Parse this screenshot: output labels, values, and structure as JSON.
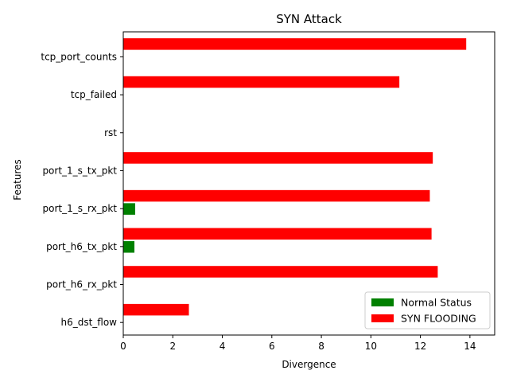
{
  "chart_data": {
    "type": "bar",
    "orientation": "horizontal",
    "title": "SYN Attack",
    "xlabel": "Divergence",
    "ylabel": "Features",
    "categories": [
      "tcp_port_counts",
      "tcp_failed",
      "rst",
      "port_1_s_tx_pkt",
      "port_1_s_rx_pkt",
      "port_h6_tx_pkt",
      "port_h6_rx_pkt",
      "h6_dst_flow"
    ],
    "series": [
      {
        "name": "Normal Status",
        "color": "#008000",
        "values": [
          0,
          0,
          0,
          0,
          0.48,
          0.45,
          0,
          0
        ]
      },
      {
        "name": "SYN FLOODING",
        "color": "#ff0000",
        "values": [
          13.85,
          11.15,
          0,
          12.5,
          12.38,
          12.45,
          12.7,
          2.65
        ]
      }
    ],
    "xlim": [
      0,
      15
    ],
    "xticks": [
      0,
      2,
      4,
      6,
      8,
      10,
      12,
      14
    ],
    "grid": false,
    "legend_position": "lower-right"
  }
}
